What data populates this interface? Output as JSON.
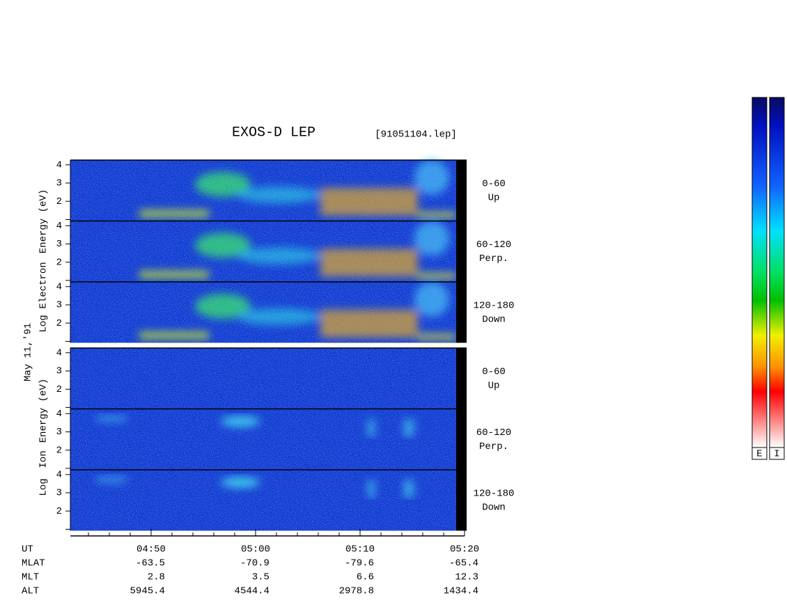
{
  "chart_data": {
    "type": "spectrogram",
    "title": "EXOS-D LEP",
    "file_label": "[91051104.lep]",
    "date_label": "May 11,'91",
    "groups": [
      {
        "ylabel": [
          "Log",
          "Electron",
          "Energy (eV)"
        ],
        "panels": [
          {
            "label": [
              "0-60",
              "Up"
            ]
          },
          {
            "label": [
              "60-120",
              "Perp."
            ]
          },
          {
            "label": [
              "120-180",
              "Down"
            ]
          }
        ]
      },
      {
        "ylabel": [
          "Log",
          "Ion",
          "Energy (eV)"
        ],
        "panels": [
          {
            "label": [
              "0-60",
              "Up"
            ]
          },
          {
            "label": [
              "60-120",
              "Perp."
            ]
          },
          {
            "label": [
              "120-180",
              "Down"
            ]
          }
        ]
      }
    ],
    "ylim": [
      0.92,
      4.26
    ],
    "yticks": [
      2,
      3,
      4
    ],
    "minor_yticks": [
      1
    ],
    "xlim": [
      282.27,
      320
    ],
    "xticks": [
      {
        "value": 290,
        "label": "04:50"
      },
      {
        "value": 300,
        "label": "05:00"
      },
      {
        "value": 310,
        "label": "05:10"
      },
      {
        "value": 320,
        "label": "05:20"
      }
    ],
    "minor_xticks": [
      284,
      286,
      288,
      292,
      294,
      296,
      298,
      302,
      304,
      306,
      308,
      312,
      314,
      316,
      318
    ],
    "ephemeris": [
      {
        "name": "UT"
      },
      {
        "name": "MLAT",
        "values": [
          -63.5,
          -70.9,
          -79.6,
          -65.4
        ]
      },
      {
        "name": "MLT",
        "values": [
          2.8,
          3.5,
          6.6,
          12.3
        ]
      },
      {
        "name": "ALT",
        "values": [
          5945.4,
          4544.4,
          2978.8,
          1434.4
        ]
      }
    ],
    "colorbar": {
      "labels": [
        "E",
        "I"
      ],
      "colors": [
        "#0a0a60",
        "#0010c0",
        "#1060ff",
        "#00e0ff",
        "#00e060",
        "#00c000",
        "#f0f000",
        "#ff9000",
        "#ff0000",
        "#ffffff"
      ]
    }
  }
}
